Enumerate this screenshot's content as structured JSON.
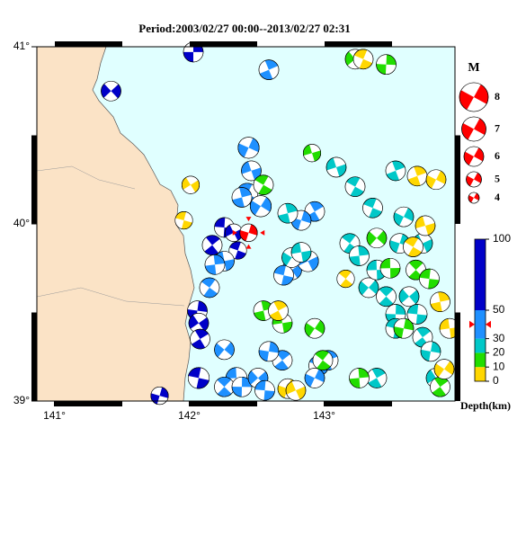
{
  "title": "Period:2003/02/27 00:00--2013/02/27 02:31",
  "map": {
    "lon_range": [
      140.87,
      143.97
    ],
    "lat_range": [
      39.0,
      41.0
    ],
    "lon_ticks": [
      {
        "value": 141,
        "label": "141°"
      },
      {
        "value": 142,
        "label": "142°"
      },
      {
        "value": 143,
        "label": "143°"
      }
    ],
    "lat_ticks": [
      {
        "value": 41,
        "label": "41°"
      },
      {
        "value": 40,
        "label": "40°"
      },
      {
        "value": 39,
        "label": "39°"
      }
    ],
    "land_color": "#fbe3c6",
    "sea_color": "#e0ffff"
  },
  "main_event": {
    "lon": 142.44,
    "lat": 39.95,
    "depth": 40,
    "mag": 5.5,
    "color": "#ff0000"
  },
  "events": [
    [
      142.03,
      40.97,
      60,
      6
    ],
    [
      141.42,
      40.75,
      60,
      6
    ],
    [
      142.26,
      39.98,
      60,
      6
    ],
    [
      142.17,
      39.88,
      60,
      6
    ],
    [
      142.06,
      39.51,
      60,
      6
    ],
    [
      142.07,
      39.44,
      60,
      6
    ],
    [
      142.07,
      39.13,
      60,
      6.3
    ],
    [
      142.08,
      39.35,
      60,
      6
    ],
    [
      141.78,
      39.03,
      60,
      5.5
    ],
    [
      142.33,
      39.95,
      60,
      5.5
    ],
    [
      142.36,
      39.85,
      60,
      5.5
    ],
    [
      142.59,
      40.87,
      40,
      6
    ],
    [
      142.44,
      40.43,
      40,
      6.3
    ],
    [
      142.46,
      40.3,
      40,
      6
    ],
    [
      142.43,
      40.17,
      40,
      6.3
    ],
    [
      142.39,
      40.15,
      40,
      6
    ],
    [
      142.53,
      40.1,
      40,
      6.3
    ],
    [
      142.26,
      39.79,
      40,
      6
    ],
    [
      142.15,
      39.64,
      40,
      6
    ],
    [
      142.19,
      39.77,
      40,
      6
    ],
    [
      142.26,
      39.29,
      40,
      6
    ],
    [
      142.35,
      39.13,
      40,
      6.3
    ],
    [
      142.26,
      39.08,
      40,
      6
    ],
    [
      142.39,
      39.08,
      40,
      6
    ],
    [
      142.51,
      39.13,
      40,
      6
    ],
    [
      142.56,
      39.06,
      40,
      6
    ],
    [
      142.69,
      39.23,
      40,
      6
    ],
    [
      142.59,
      39.28,
      40,
      6
    ],
    [
      142.76,
      39.74,
      40,
      6
    ],
    [
      142.7,
      39.71,
      40,
      6
    ],
    [
      142.93,
      40.07,
      40,
      6
    ],
    [
      142.83,
      40.02,
      40,
      6
    ],
    [
      142.88,
      39.79,
      40,
      6.3
    ],
    [
      142.96,
      39.2,
      40,
      6
    ],
    [
      143.03,
      39.23,
      40,
      6
    ],
    [
      142.93,
      39.13,
      40,
      6
    ],
    [
      143.09,
      40.32,
      25,
      6
    ],
    [
      143.23,
      40.21,
      25,
      6
    ],
    [
      142.73,
      40.06,
      25,
      6
    ],
    [
      142.76,
      39.81,
      25,
      6
    ],
    [
      142.83,
      39.84,
      25,
      6
    ],
    [
      143.19,
      39.89,
      25,
      6
    ],
    [
      143.26,
      39.82,
      25,
      6
    ],
    [
      143.33,
      39.64,
      25,
      6
    ],
    [
      143.39,
      39.74,
      25,
      6
    ],
    [
      143.46,
      39.59,
      25,
      6
    ],
    [
      143.53,
      39.49,
      25,
      6
    ],
    [
      143.63,
      39.59,
      25,
      6
    ],
    [
      143.69,
      39.49,
      25,
      6
    ],
    [
      143.73,
      39.36,
      25,
      6
    ],
    [
      143.79,
      39.28,
      25,
      6
    ],
    [
      143.83,
      39.13,
      25,
      6
    ],
    [
      143.53,
      39.41,
      25,
      6
    ],
    [
      143.39,
      39.13,
      25,
      6
    ],
    [
      143.56,
      39.89,
      25,
      6
    ],
    [
      143.73,
      39.89,
      25,
      6
    ],
    [
      143.36,
      40.09,
      25,
      6
    ],
    [
      143.53,
      40.3,
      25,
      6
    ],
    [
      143.59,
      40.04,
      25,
      6
    ],
    [
      142.91,
      40.4,
      15,
      5.5
    ],
    [
      142.55,
      40.22,
      15,
      6
    ],
    [
      142.55,
      39.51,
      15,
      6
    ],
    [
      142.93,
      39.41,
      15,
      6
    ],
    [
      142.69,
      39.44,
      15,
      6
    ],
    [
      142.99,
      39.23,
      15,
      6
    ],
    [
      143.26,
      39.13,
      15,
      6
    ],
    [
      143.39,
      39.92,
      15,
      6
    ],
    [
      143.49,
      39.75,
      15,
      6
    ],
    [
      143.68,
      39.74,
      15,
      6
    ],
    [
      143.46,
      40.9,
      15,
      6
    ],
    [
      143.23,
      40.93,
      15,
      6
    ],
    [
      143.78,
      39.69,
      15,
      6
    ],
    [
      143.86,
      39.08,
      15,
      6
    ],
    [
      143.59,
      39.41,
      15,
      6
    ],
    [
      142.01,
      40.22,
      5,
      5.5
    ],
    [
      141.96,
      40.02,
      5,
      5.5
    ],
    [
      142.66,
      39.51,
      5,
      6
    ],
    [
      142.73,
      39.07,
      5,
      6
    ],
    [
      142.79,
      39.06,
      5,
      6
    ],
    [
      143.29,
      40.93,
      5,
      6
    ],
    [
      143.69,
      40.27,
      5,
      6
    ],
    [
      143.83,
      40.25,
      5,
      6
    ],
    [
      143.75,
      39.99,
      5,
      6
    ],
    [
      143.66,
      39.87,
      5,
      6
    ],
    [
      143.86,
      39.56,
      5,
      6
    ],
    [
      143.89,
      39.18,
      5,
      6
    ],
    [
      143.93,
      39.41,
      5,
      6
    ],
    [
      143.16,
      39.69,
      5,
      5.5
    ]
  ],
  "magnitude_legend": {
    "title": "M",
    "values": [
      8,
      7,
      6,
      5,
      4
    ],
    "color": "#ff0000"
  },
  "depth_scale": {
    "range": [
      0,
      100
    ],
    "ticks": [
      0,
      10,
      20,
      30,
      50,
      100
    ],
    "label": "Depth(km)",
    "classes": [
      {
        "from": 0,
        "to": 10,
        "color": "#ffd700"
      },
      {
        "from": 10,
        "to": 20,
        "color": "#22dd00"
      },
      {
        "from": 20,
        "to": 30,
        "color": "#00c8c8"
      },
      {
        "from": 30,
        "to": 50,
        "color": "#1e90ff"
      },
      {
        "from": 50,
        "to": 100,
        "color": "#0000c8"
      }
    ]
  }
}
